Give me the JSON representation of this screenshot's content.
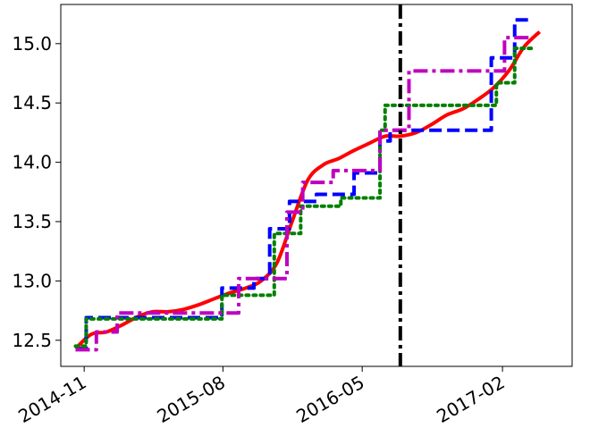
{
  "chart_data": {
    "type": "line",
    "title": "",
    "xlabel": "",
    "ylabel": "",
    "x_ticks": [
      "2014-11",
      "2015-08",
      "2016-05",
      "2017-02"
    ],
    "y_ticks": [
      "12.5",
      "13.0",
      "13.5",
      "14.0",
      "14.5",
      "15.0"
    ],
    "xlim": [
      "2014-09-16",
      "2017-06-18"
    ],
    "ylim": [
      12.28,
      15.33
    ],
    "grid": false,
    "legend": "none",
    "vline": {
      "x": "2016-07-15",
      "color": "#000000",
      "style": "dash-dot"
    },
    "series": [
      {
        "color": "#ff0000",
        "style": "solid",
        "step": false,
        "x": [
          "2014-10-15",
          "2014-11-15",
          "2014-12-15",
          "2015-01-15",
          "2015-02-15",
          "2015-03-15",
          "2015-04-15",
          "2015-05-15",
          "2015-06-15",
          "2015-07-15",
          "2015-08-15",
          "2015-09-15",
          "2015-10-15",
          "2015-11-15",
          "2015-12-15",
          "2016-01-15",
          "2016-02-15",
          "2016-03-15",
          "2016-04-15",
          "2016-05-15",
          "2016-06-15",
          "2016-07-15",
          "2016-08-15",
          "2016-09-15",
          "2016-10-15",
          "2016-11-15",
          "2016-12-15",
          "2017-01-15",
          "2017-02-15",
          "2017-03-15",
          "2017-04-15"
        ],
        "y": [
          12.43,
          12.55,
          12.57,
          12.63,
          12.7,
          12.74,
          12.74,
          12.76,
          12.8,
          12.85,
          12.9,
          12.94,
          13.0,
          13.15,
          13.5,
          13.85,
          13.98,
          14.03,
          14.1,
          14.16,
          14.22,
          14.22,
          14.25,
          14.32,
          14.4,
          14.45,
          14.53,
          14.63,
          14.78,
          14.97,
          15.1
        ]
      },
      {
        "color": "#0000ff",
        "style": "dashed",
        "step": true,
        "x": [
          "2014-10-15",
          "2014-11-05",
          "2015-07-30",
          "2015-10-01",
          "2015-11-01",
          "2015-12-10",
          "2016-02-01",
          "2016-04-15",
          "2016-06-05",
          "2016-06-25",
          "2016-12-20",
          "2017-01-10",
          "2017-02-25",
          "2017-04-01"
        ],
        "y": [
          12.43,
          12.69,
          12.94,
          13.02,
          13.44,
          13.67,
          13.73,
          13.91,
          14.18,
          14.27,
          14.27,
          14.88,
          15.2,
          15.2
        ]
      },
      {
        "color": "#008000",
        "style": "dotted",
        "step": true,
        "x": [
          "2014-10-15",
          "2014-11-05",
          "2015-07-30",
          "2015-11-01",
          "2015-11-10",
          "2016-01-01",
          "2016-03-20",
          "2016-06-05",
          "2016-06-15",
          "2017-01-20",
          "2017-02-25",
          "2017-04-01"
        ],
        "y": [
          12.45,
          12.68,
          12.88,
          12.88,
          13.4,
          13.63,
          13.7,
          14.27,
          14.48,
          14.67,
          14.96,
          14.96
        ]
      },
      {
        "color": "#bf00bf",
        "style": "dash-dot",
        "step": true,
        "x": [
          "2014-10-15",
          "2014-11-25",
          "2015-01-05",
          "2015-08-05",
          "2015-09-01",
          "2015-12-05",
          "2016-01-05",
          "2016-03-05",
          "2016-06-05",
          "2016-08-01",
          "2017-01-15",
          "2017-02-05",
          "2017-04-01"
        ],
        "y": [
          12.42,
          12.57,
          12.73,
          12.73,
          13.02,
          13.58,
          13.83,
          13.93,
          14.27,
          14.77,
          14.77,
          15.05,
          15.05
        ]
      }
    ]
  }
}
